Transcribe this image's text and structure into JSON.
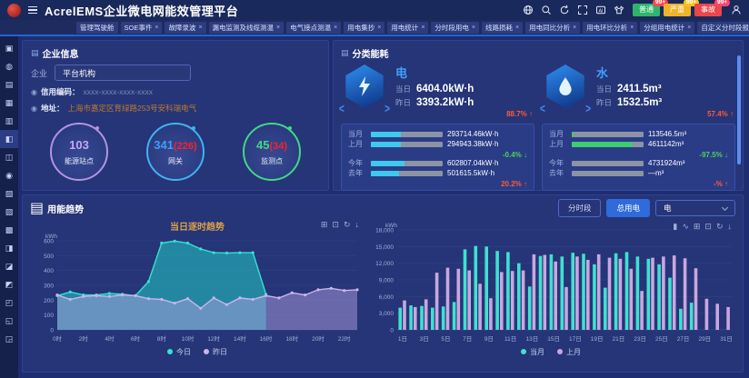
{
  "brand": {
    "title": "AcrelEMS企业微电网能效管理平台"
  },
  "header": {
    "icons": [
      "globe-icon",
      "search-icon",
      "refresh-icon",
      "fullscreen-icon",
      "ai-icon",
      "theme-icon",
      "user-icon"
    ],
    "alarms": [
      {
        "label": "普通",
        "count": "99+",
        "color": "#2fb56b",
        "bubble": "#f5484d"
      },
      {
        "label": "严重",
        "count": "99+",
        "color": "#f0b42a",
        "bubble": "#f7c325"
      },
      {
        "label": "事故",
        "count": "99+",
        "color": "#e8474b",
        "bubble": "#f5486e"
      }
    ]
  },
  "tabs": {
    "items": [
      {
        "label": "管理驾驶舱",
        "closable": false,
        "active": false
      },
      {
        "label": "SOE事件",
        "closable": true,
        "active": false
      },
      {
        "label": "故障录波",
        "closable": true,
        "active": false
      },
      {
        "label": "漏电监测及线缆测温",
        "closable": true,
        "active": false
      },
      {
        "label": "电气接点测温",
        "closable": true,
        "active": false
      },
      {
        "label": "用电集抄",
        "closable": true,
        "active": false
      },
      {
        "label": "用电统计",
        "closable": true,
        "active": false
      },
      {
        "label": "分时段用电",
        "closable": true,
        "active": false
      },
      {
        "label": "线路损耗",
        "closable": true,
        "active": false
      },
      {
        "label": "用电同比分析",
        "closable": true,
        "active": false
      },
      {
        "label": "用电环比分析",
        "closable": true,
        "active": false
      },
      {
        "label": "分组用电统计",
        "closable": true,
        "active": false
      },
      {
        "label": "自定义分时段报表",
        "closable": true,
        "active": false
      },
      {
        "label": "能耗综合看板",
        "closable": true,
        "active": true
      }
    ]
  },
  "sidebar": {
    "items": [
      {
        "name": "sidebar-item-monitor",
        "glyph": "▣"
      },
      {
        "name": "sidebar-item-dashboard",
        "glyph": "◍"
      },
      {
        "name": "sidebar-item-enterprise",
        "glyph": "▤"
      },
      {
        "name": "sidebar-item-bank",
        "glyph": "▦"
      },
      {
        "name": "sidebar-item-statistics",
        "glyph": "▥"
      },
      {
        "name": "sidebar-item-energy-board",
        "glyph": "◧"
      },
      {
        "name": "sidebar-item-screen",
        "glyph": "◫"
      },
      {
        "name": "sidebar-item-bulb",
        "glyph": "◉"
      },
      {
        "name": "sidebar-item-meter",
        "glyph": "▧"
      },
      {
        "name": "sidebar-item-power",
        "glyph": "▨"
      },
      {
        "name": "sidebar-item-qrcode",
        "glyph": "▩"
      },
      {
        "name": "sidebar-item-devices",
        "glyph": "◨"
      },
      {
        "name": "sidebar-item-battery",
        "glyph": "◪"
      },
      {
        "name": "sidebar-item-edit",
        "glyph": "◩"
      },
      {
        "name": "sidebar-item-layers",
        "glyph": "◰"
      },
      {
        "name": "sidebar-item-report",
        "glyph": "◱"
      },
      {
        "name": "sidebar-item-tools",
        "glyph": "◲"
      }
    ],
    "active_index": 5
  },
  "enterprise": {
    "panel_title": "企业信息",
    "company_label": "企业",
    "company_value": "平台机构",
    "credit_label": "信用编码：",
    "credit_value": "xxxx-xxxx-xxxx-xxxx",
    "address_label": "地址：",
    "address_value": "上海市嘉定区育绿路253号安科瑞电气",
    "rings": [
      {
        "value": "103",
        "sub": "",
        "label": "能源站点",
        "color": "#b393e2",
        "value_color": "#c5a8ef",
        "sub_color": "#f5222d"
      },
      {
        "value": "341",
        "sub": "(226)",
        "label": "网关",
        "color": "#3fb3f5",
        "value_color": "#3f9df5",
        "sub_color": "#f5222d"
      },
      {
        "value": "45",
        "sub": "(34)",
        "label": "监测点",
        "color": "#41d787",
        "value_color": "#41d787",
        "sub_color": "#f5222d"
      }
    ]
  },
  "energy": {
    "panel_title": "分类能耗",
    "sections": [
      {
        "name": "电",
        "icon": "lightning-icon",
        "today_label": "当日",
        "today_value": "6404.0kW·h",
        "yest_label": "昨日",
        "yest_value": "3393.2kW·h",
        "day_change": "88.7%",
        "day_dir": "up",
        "bar_color": "#3fc8f0",
        "rows": [
          {
            "label": "当月",
            "pct": 42,
            "value": "293714.46kW·h"
          },
          {
            "label": "上月",
            "pct": 42,
            "value": "294943.38kW·h"
          }
        ],
        "mid_change": "-0.4%",
        "mid_dir": "down",
        "rows2": [
          {
            "label": "今年",
            "pct": 47,
            "value": "602807.04kW·h"
          },
          {
            "label": "去年",
            "pct": 39,
            "value": "501615.5kW·h"
          }
        ],
        "bot_change": "20.2%",
        "bot_dir": "up"
      },
      {
        "name": "水",
        "icon": "droplet-icon",
        "today_label": "当日",
        "today_value": "2411.5m³",
        "yest_label": "昨日",
        "yest_value": "1532.5m³",
        "day_change": "57.4%",
        "day_dir": "up",
        "bar_color": "#3ecb71",
        "rows": [
          {
            "label": "当月",
            "pct": 3,
            "value": "113546.5m³"
          },
          {
            "label": "上月",
            "pct": 85,
            "value": "4611142m³"
          }
        ],
        "mid_change": "-97.5%",
        "mid_dir": "down",
        "rows2": [
          {
            "label": "今年",
            "pct": 0,
            "value": "4731924m³"
          },
          {
            "label": "去年",
            "pct": 0,
            "value": "—m³"
          }
        ],
        "bot_change": "-%",
        "bot_dir": "up"
      }
    ]
  },
  "trend": {
    "panel_title": "用能趋势",
    "buttons": [
      "分时段",
      "总用电"
    ],
    "active_button": "总用电",
    "dropdown_value": "电",
    "left_title": "当日逐时趋势",
    "toolbox_left": [
      "⊞",
      "⊡",
      "↻",
      "↓"
    ],
    "toolbox_right": [
      "▮",
      "∿",
      "⊞",
      "⊡",
      "↻",
      "↓"
    ]
  },
  "chart_data": [
    {
      "type": "line",
      "title": "当日逐时趋势",
      "ylabel": "kWh",
      "ylim": [
        0,
        600
      ],
      "ytick": 100,
      "x_labels": [
        "0时",
        "1时",
        "2时",
        "3时",
        "4时",
        "5时",
        "6时",
        "7时",
        "8时",
        "9时",
        "10时",
        "11时",
        "12时",
        "13时",
        "14时",
        "15时",
        "16时",
        "17时",
        "18时",
        "19时",
        "20时",
        "21时",
        "22时",
        "23时"
      ],
      "legend_position": "bottom",
      "grid": true,
      "series": [
        {
          "name": "今日",
          "color": "#35e2d2",
          "fill": "rgba(34,180,186,0.65)",
          "values": [
            230,
            255,
            235,
            235,
            245,
            240,
            230,
            325,
            585,
            598,
            585,
            545,
            520,
            518,
            520,
            520,
            240
          ]
        },
        {
          "name": "昨日",
          "color": "#cbb4ee",
          "fill": "rgba(178,160,226,0.48)",
          "values": [
            235,
            205,
            225,
            230,
            225,
            235,
            230,
            210,
            205,
            180,
            210,
            145,
            215,
            170,
            215,
            205,
            230,
            215,
            250,
            235,
            270,
            280,
            265,
            270
          ]
        }
      ]
    },
    {
      "type": "bar",
      "title": "",
      "ylabel": "kWh",
      "ylim": [
        0,
        18000
      ],
      "ytick": 3000,
      "legend_position": "bottom",
      "grid": true,
      "categories": [
        "1日",
        "2日",
        "3日",
        "4日",
        "5日",
        "6日",
        "7日",
        "8日",
        "9日",
        "10日",
        "11日",
        "12日",
        "13日",
        "14日",
        "15日",
        "16日",
        "17日",
        "18日",
        "19日",
        "20日",
        "21日",
        "22日",
        "23日",
        "24日",
        "25日",
        "26日",
        "27日",
        "28日",
        "29日",
        "30日",
        "31日"
      ],
      "series": [
        {
          "name": "当月",
          "color": "#40e0d0",
          "values": [
            4000,
            4400,
            4300,
            4000,
            4200,
            5000,
            14500,
            15100,
            15000,
            14200,
            14000,
            12000,
            7800,
            13300,
            13600,
            13200,
            13900,
            13700,
            11800,
            7600,
            13800,
            14000,
            13200,
            12800,
            11800,
            9400,
            3800,
            4900,
            null,
            null,
            null
          ]
        },
        {
          "name": "上月",
          "color": "#c9a6e0",
          "values": [
            5300,
            4100,
            5500,
            10300,
            11200,
            11000,
            10700,
            8300,
            5700,
            10400,
            10600,
            10700,
            13600,
            13500,
            12300,
            7700,
            13200,
            12600,
            13600,
            13000,
            12800,
            11000,
            7000,
            13000,
            13200,
            13400,
            12900,
            11100,
            5600,
            4700,
            4100
          ]
        }
      ]
    }
  ]
}
